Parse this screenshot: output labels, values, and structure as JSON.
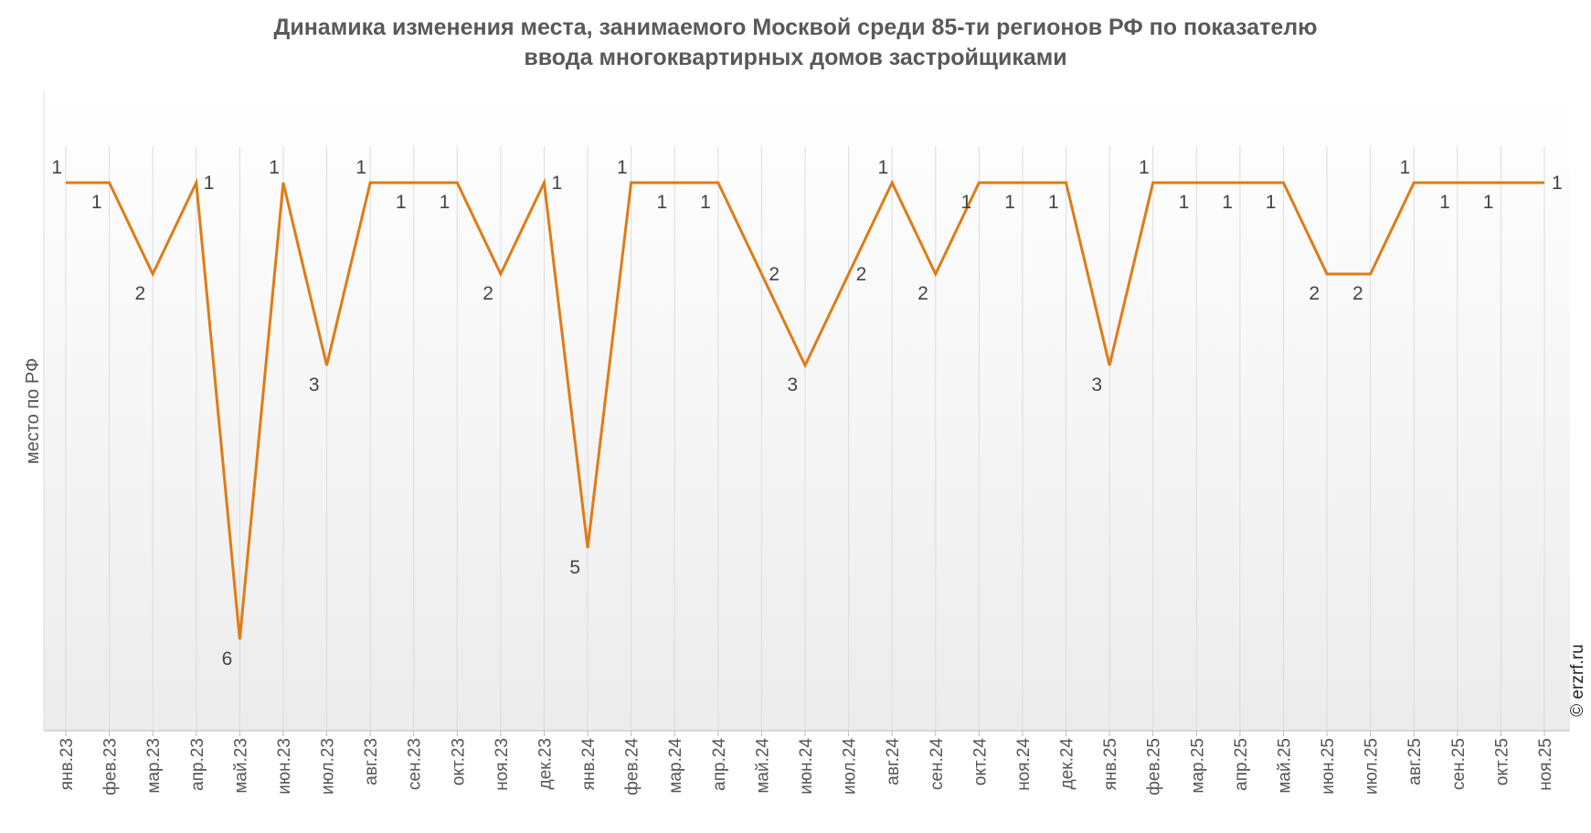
{
  "chart_data": {
    "type": "line",
    "title_lines": [
      "Динамика изменения места, занимаемого Москвой среди 85-ти регионов РФ по показателю",
      "ввода многоквартирных домов застройщиками"
    ],
    "xlabel": "",
    "ylabel": "место по РФ",
    "y_reversed": true,
    "ylim": [
      7,
      0.0
    ],
    "grid": "vertical",
    "categories": [
      "янв.23",
      "фев.23",
      "мар.23",
      "апр.23",
      "май.23",
      "июн.23",
      "июл.23",
      "авг.23",
      "сен.23",
      "окт.23",
      "ноя.23",
      "дек.23",
      "янв.24",
      "фев.24",
      "мар.24",
      "апр.24",
      "май.24",
      "июн.24",
      "июл.24",
      "авг.24",
      "сен.24",
      "окт.24",
      "ноя.24",
      "дек.24",
      "янв.25",
      "фев.25",
      "мар.25",
      "апр.25",
      "май.25",
      "июн.25",
      "июл.25",
      "авг.25",
      "сен.25",
      "окт.25",
      "ноя.25"
    ],
    "series": [
      {
        "color": "#E07B15",
        "values": [
          1,
          1,
          2,
          1,
          6,
          1,
          3,
          1,
          1,
          1,
          2,
          1,
          5,
          1,
          1,
          1,
          2,
          3,
          2,
          1,
          2,
          1,
          1,
          1,
          3,
          1,
          1,
          1,
          1,
          2,
          2,
          1,
          1,
          1,
          1
        ]
      }
    ],
    "label_positions": [
      "above",
      "below",
      "below",
      "right",
      "below",
      "above",
      "below",
      "above",
      "below",
      "below",
      "below",
      "right",
      "below",
      "above",
      "below",
      "below",
      "right",
      "below",
      "right",
      "above",
      "below",
      "below",
      "below",
      "below",
      "below",
      "above",
      "below",
      "below",
      "below",
      "below",
      "below",
      "above",
      "below",
      "below",
      "right"
    ],
    "watermark": "© erzrf.ru"
  }
}
